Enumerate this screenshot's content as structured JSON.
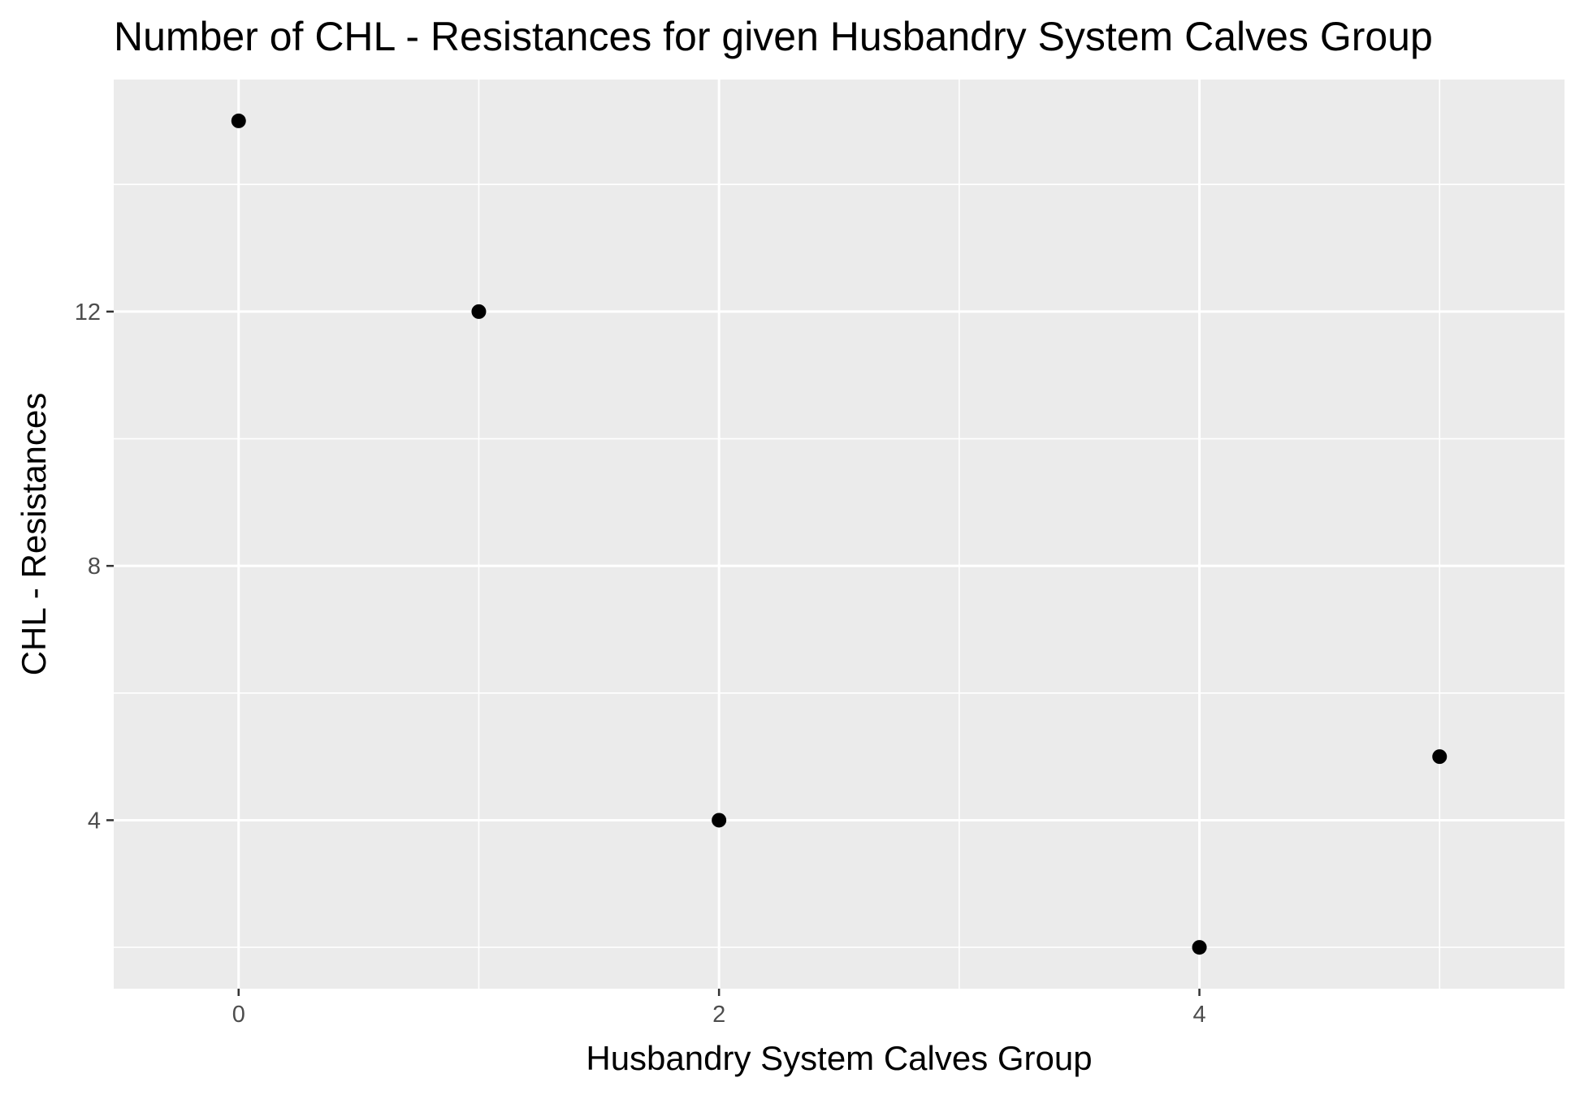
{
  "chart_data": {
    "type": "scatter",
    "title": "Number of CHL - Resistances for given Husbandry System Calves Group",
    "xlabel": "Husbandry System Calves Group",
    "ylabel": "CHL - Resistances",
    "x": [
      0,
      1,
      2,
      4,
      5
    ],
    "y": [
      15,
      12,
      4,
      2,
      5
    ],
    "x_ticks": [
      0,
      2,
      4
    ],
    "y_ticks": [
      4,
      8,
      12
    ],
    "xlim": [
      -0.52,
      5.52
    ],
    "ylim": [
      1.35,
      15.65
    ],
    "grid": true,
    "panel_background": "#ebebeb",
    "grid_color": "#ffffff",
    "point_color": "#000000"
  }
}
